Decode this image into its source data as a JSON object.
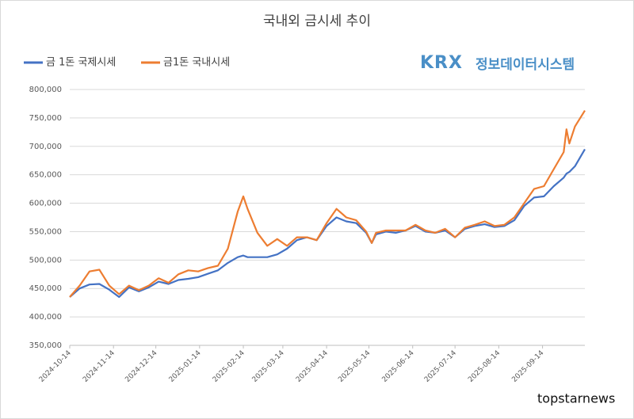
{
  "chart_data": {
    "type": "line",
    "title": "국내외 금시세 추이",
    "logo": "KRX",
    "logo_text": "정보데이터시스템",
    "watermark": "topstarnews",
    "x": [
      "2024-10-14",
      "2024-10-21",
      "2024-10-28",
      "2024-11-04",
      "2024-11-11",
      "2024-11-18",
      "2024-11-25",
      "2024-12-02",
      "2024-12-09",
      "2024-12-16",
      "2024-12-23",
      "2024-12-30",
      "2025-01-06",
      "2025-01-13",
      "2025-01-20",
      "2025-01-27",
      "2025-02-03",
      "2025-02-10",
      "2025-02-14",
      "2025-02-17",
      "2025-02-24",
      "2025-03-03",
      "2025-03-10",
      "2025-03-17",
      "2025-03-24",
      "2025-03-31",
      "2025-04-07",
      "2025-04-14",
      "2025-04-21",
      "2025-04-28",
      "2025-05-05",
      "2025-05-12",
      "2025-05-16",
      "2025-05-19",
      "2025-05-26",
      "2025-06-02",
      "2025-06-09",
      "2025-06-16",
      "2025-06-23",
      "2025-06-30",
      "2025-07-07",
      "2025-07-14",
      "2025-07-21",
      "2025-07-28",
      "2025-08-04",
      "2025-08-11",
      "2025-08-18",
      "2025-08-25",
      "2025-09-01",
      "2025-09-08",
      "2025-09-15",
      "2025-09-22",
      "2025-09-29",
      "2025-10-01",
      "2025-10-03",
      "2025-10-07",
      "2025-10-14"
    ],
    "series": [
      {
        "name": "금 1돈 국제시세",
        "color": "#4472c4",
        "values": [
          435000,
          450000,
          457000,
          458000,
          448000,
          435000,
          452000,
          445000,
          452000,
          462000,
          458000,
          465000,
          467000,
          470000,
          476000,
          482000,
          495000,
          505000,
          508000,
          505000,
          505000,
          505000,
          510000,
          520000,
          535000,
          540000,
          535000,
          560000,
          575000,
          568000,
          565000,
          548000,
          530000,
          545000,
          550000,
          548000,
          552000,
          560000,
          550000,
          548000,
          552000,
          540000,
          555000,
          560000,
          563000,
          558000,
          560000,
          570000,
          595000,
          610000,
          612000,
          630000,
          645000,
          652000,
          655000,
          665000,
          695000
        ]
      },
      {
        "name": "금1돈 국내시세",
        "color": "#ed7d31",
        "values": [
          435000,
          455000,
          480000,
          483000,
          455000,
          440000,
          455000,
          447000,
          455000,
          468000,
          460000,
          475000,
          482000,
          480000,
          486000,
          490000,
          520000,
          585000,
          612000,
          590000,
          548000,
          525000,
          537000,
          525000,
          540000,
          540000,
          535000,
          565000,
          590000,
          575000,
          570000,
          550000,
          530000,
          548000,
          552000,
          552000,
          552000,
          562000,
          552000,
          548000,
          555000,
          540000,
          557000,
          562000,
          568000,
          560000,
          562000,
          575000,
          600000,
          625000,
          630000,
          660000,
          690000,
          730000,
          705000,
          735000,
          763000
        ]
      }
    ],
    "xlim": [
      "2024-10-14",
      "2025-10-14"
    ],
    "xticks": [
      "2024-10-14",
      "2024-11-14",
      "2024-12-14",
      "2025-01-14",
      "2025-02-14",
      "2025-03-14",
      "2025-04-14",
      "2025-05-14",
      "2025-06-14",
      "2025-07-14",
      "2025-08-14",
      "2025-09-14"
    ],
    "ylim": [
      350000,
      800000
    ],
    "yticks": [
      {
        "value": 350000,
        "label": "350,000"
      },
      {
        "value": 400000,
        "label": "400,000"
      },
      {
        "value": 450000,
        "label": "450,000"
      },
      {
        "value": 500000,
        "label": "500,000"
      },
      {
        "value": 550000,
        "label": "550,000"
      },
      {
        "value": 600000,
        "label": "600,000"
      },
      {
        "value": 650000,
        "label": "650,000"
      },
      {
        "value": 700000,
        "label": "700,000"
      },
      {
        "value": 750000,
        "label": "750,000"
      },
      {
        "value": 800000,
        "label": "800,000"
      }
    ],
    "grid": true
  }
}
